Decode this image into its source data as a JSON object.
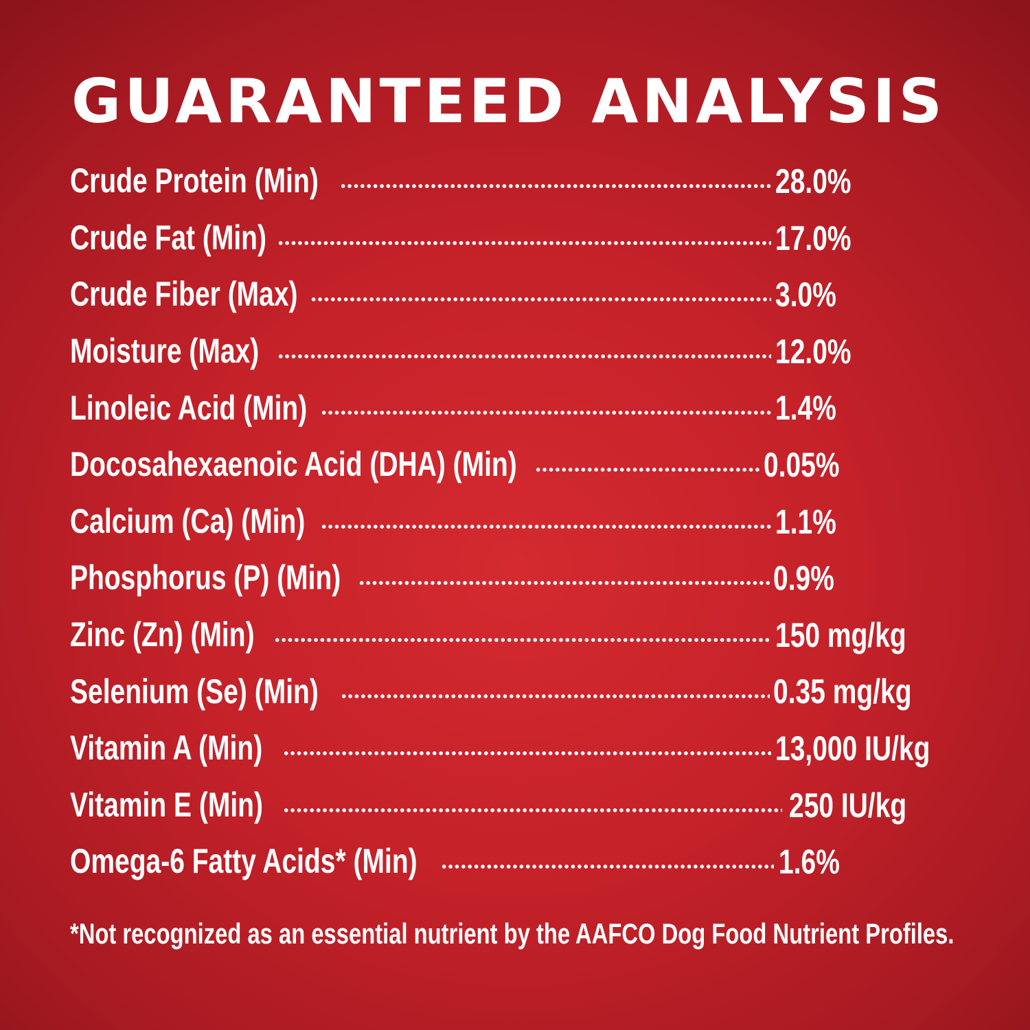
{
  "title": "GUARANTEED ANALYSIS",
  "rows": [
    {
      "label": "Crude Protein (Min)",
      "value": "28.0%"
    },
    {
      "label": "Crude Fat (Min)",
      "value": "17.0%"
    },
    {
      "label": "Crude Fiber (Max)",
      "value": "3.0%"
    },
    {
      "label": "Moisture (Max)",
      "value": "12.0%"
    },
    {
      "label": "Linoleic Acid (Min)",
      "value": "1.4%"
    },
    {
      "label": "Docosahexaenoic Acid (DHA) (Min)",
      "value": "0.05%"
    },
    {
      "label": "Calcium (Ca) (Min)",
      "value": "1.1%"
    },
    {
      "label": "Phosphorus (P) (Min)",
      "value": "0.9%"
    },
    {
      "label": "Zinc (Zn) (Min)",
      "value": "150 mg/kg"
    },
    {
      "label": "Selenium (Se) (Min)",
      "value": "0.35 mg/kg"
    },
    {
      "label": "Vitamin A (Min)",
      "value": "13,000 IU/kg"
    },
    {
      "label": "Vitamin E (Min)",
      "value": "250 IU/kg"
    },
    {
      "label": "Omega-6 Fatty Acids* (Min)",
      "value": "1.6%"
    }
  ],
  "footnote": "*Not recognized as an essential nutrient by the AAFCO Dog Food Nutrient Profiles.",
  "colors": {
    "background": "#c42129",
    "text": "#ffffff"
  }
}
